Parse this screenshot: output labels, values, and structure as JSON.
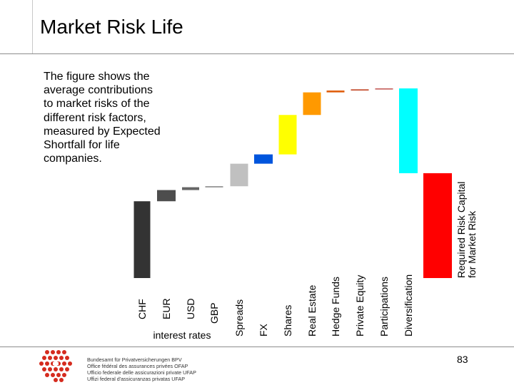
{
  "page": {
    "title": "Market Risk Life",
    "description": "The figure shows the average contributions to market risks of the different risk factors, measured by Expected Shortfall for life companies.",
    "page_number": "83"
  },
  "logo": {
    "lines": [
      "Bundesamt für Privatversicherungen BPV",
      "Office fédéral des assurances privées OFAP",
      "Ufficio federale delle assicurazioni private UFAP",
      "Uffizi federal d'assicuranzas privatas UFAP"
    ]
  },
  "chart_data": {
    "type": "waterfall",
    "title": "",
    "ylabel": "",
    "ylim": [
      0,
      100
    ],
    "group_label": "interest rates",
    "categories": [
      "CHF",
      "EUR",
      "USD",
      "GBP",
      "Spreads",
      "FX",
      "Shares",
      "Real Estate",
      "Hedge Funds",
      "Private Equity",
      "Participations",
      "Diversification",
      "Required Risk Capital for Market Risk"
    ],
    "steps": [
      {
        "label": "CHF",
        "from": 0,
        "to": 40.5,
        "color": "#333333"
      },
      {
        "label": "EUR",
        "from": 40.5,
        "to": 46.4,
        "color": "#4d4d4d"
      },
      {
        "label": "USD",
        "from": 46.4,
        "to": 47.9,
        "color": "#666666"
      },
      {
        "label": "GBP",
        "from": 47.9,
        "to": 48.4,
        "color": "#808080"
      },
      {
        "label": "Spreads",
        "from": 48.4,
        "to": 60.3,
        "color": "#c0c0c0"
      },
      {
        "label": "FX",
        "from": 60.3,
        "to": 65.2,
        "color": "#0055dd"
      },
      {
        "label": "Shares",
        "from": 65.2,
        "to": 86.0,
        "color": "#ffff00"
      },
      {
        "label": "Real Estate",
        "from": 86.0,
        "to": 97.9,
        "color": "#ff9900"
      },
      {
        "label": "Hedge Funds",
        "from": 97.9,
        "to": 98.9,
        "color": "#e06010"
      },
      {
        "label": "Private Equity",
        "from": 98.9,
        "to": 99.5,
        "color": "#c04020"
      },
      {
        "label": "Participations",
        "from": 99.5,
        "to": 100.0,
        "color": "#c0504d"
      },
      {
        "label": "Diversification",
        "from": 100.0,
        "to": 55.3,
        "color": "#00ffff"
      },
      {
        "label": "Required Risk Capital for Market Risk",
        "from": 0,
        "to": 55.3,
        "color": "#ff0000"
      }
    ]
  }
}
